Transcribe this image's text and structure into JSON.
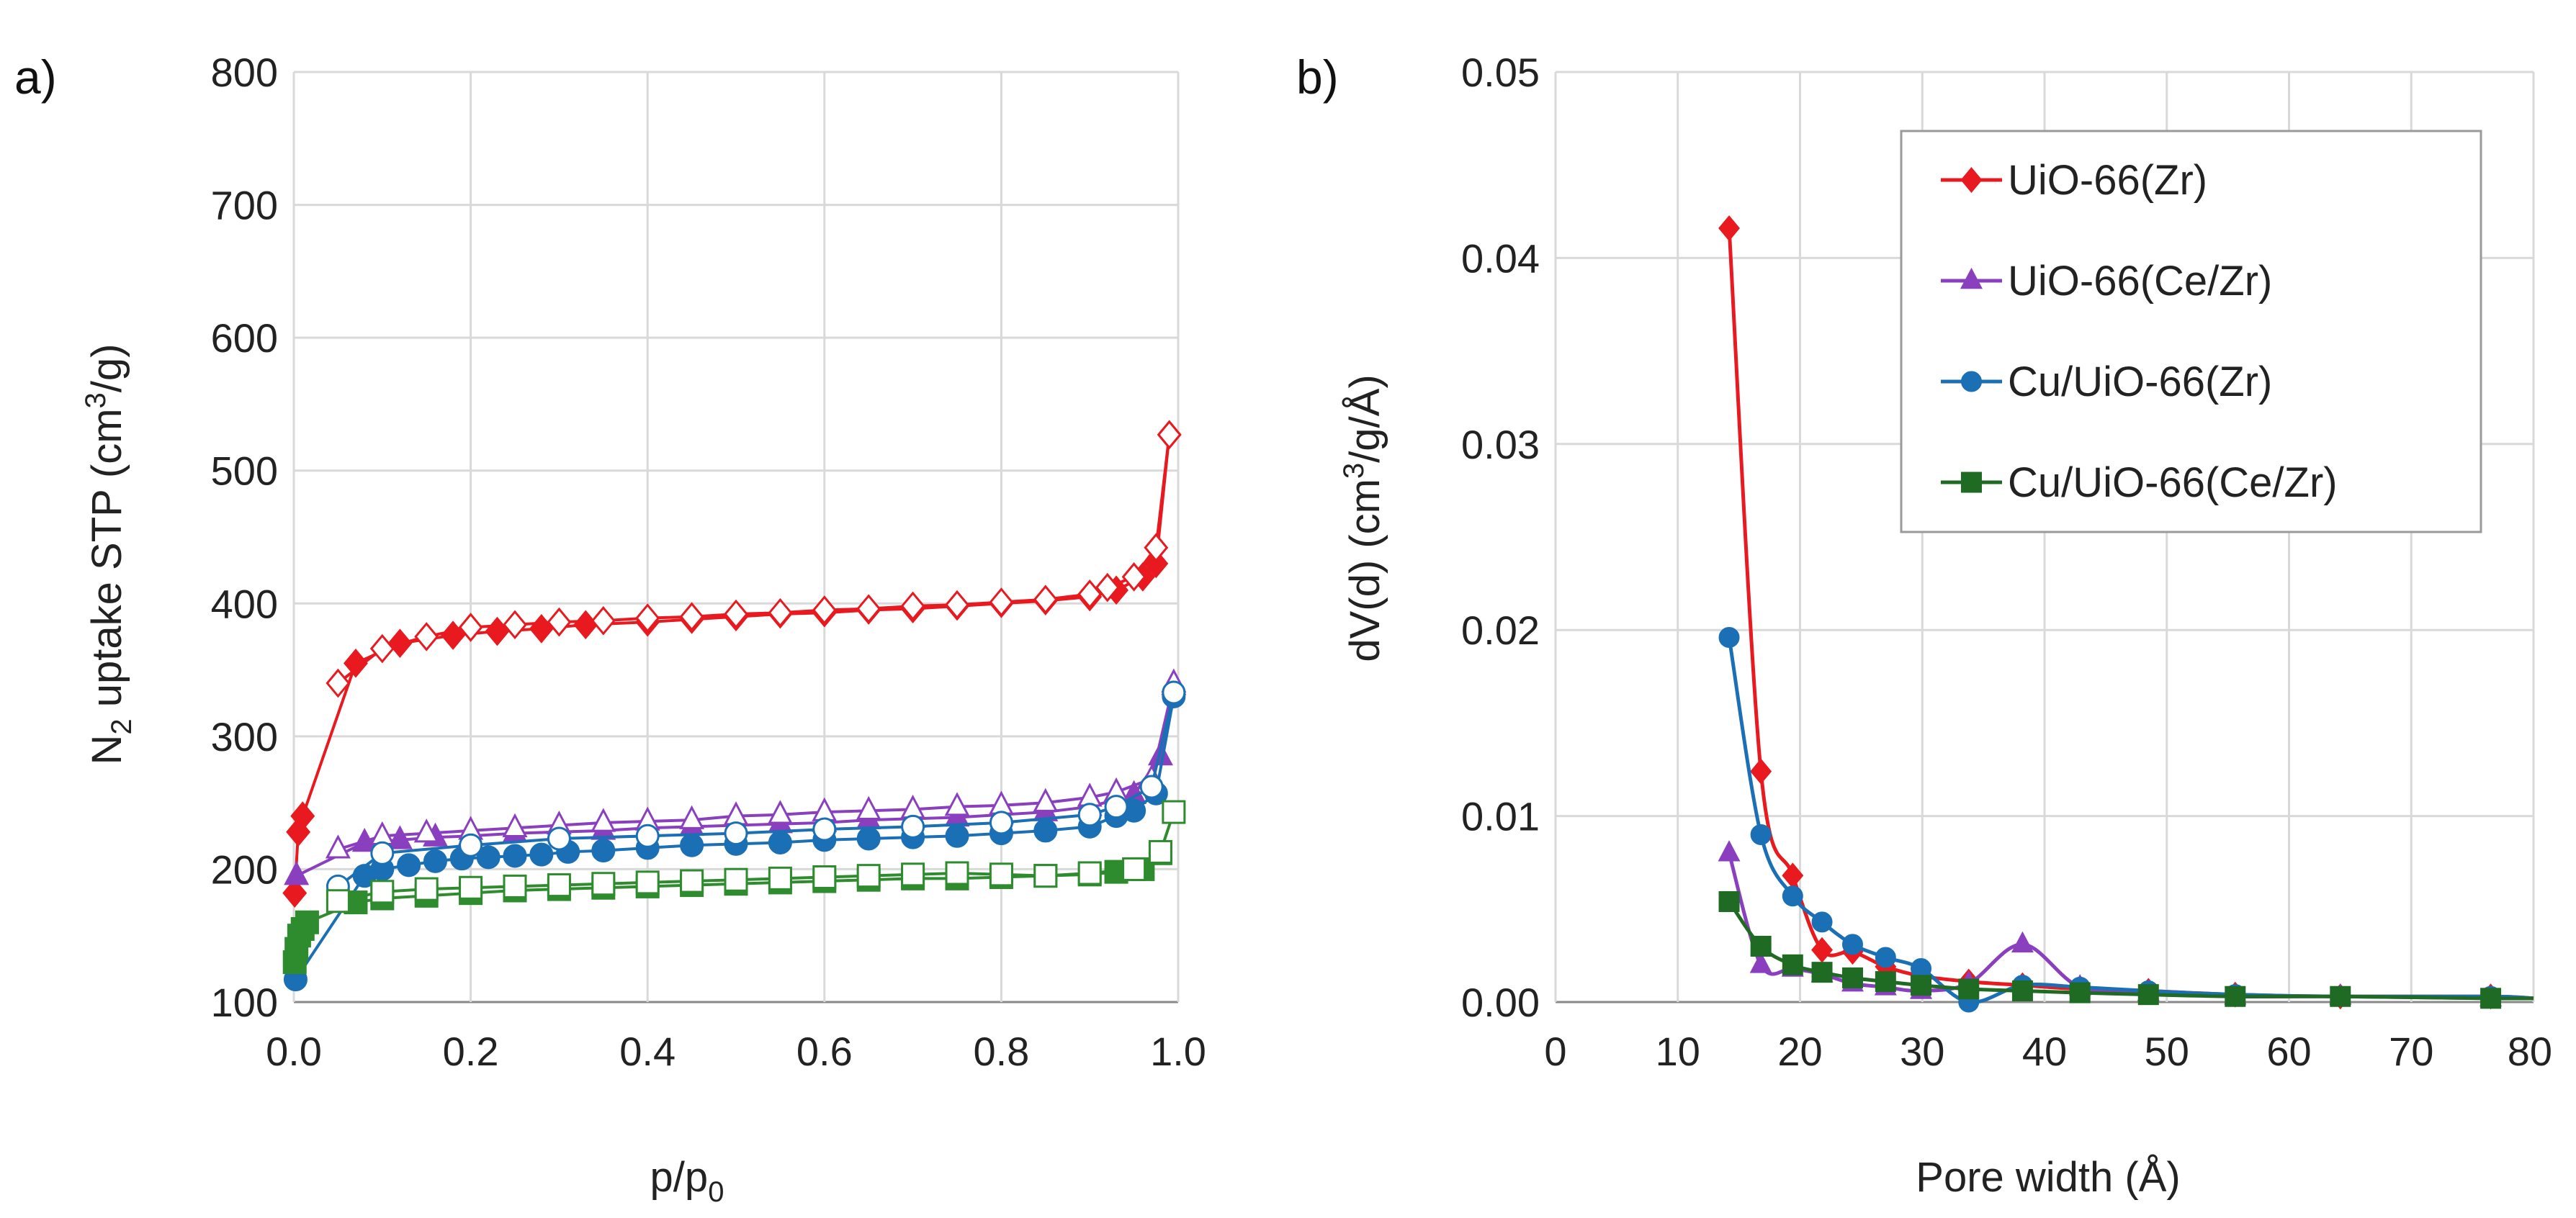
{
  "colors": {
    "UiO-66(Zr)": "#e8191f",
    "UiO-66(Ce/Zr)": "#8a3fbf",
    "Cu/UiO-66(Zr)": "#1b6fb5",
    "Cu/UiO-66(Ce/Zr)": "#2e8b2e",
    "Cu/UiO-66(Ce/Zr) dark": "#1f6b24"
  },
  "chart_data": [
    {
      "type": "scatter",
      "panel": "a)",
      "title": "",
      "xlabel": "p/p",
      "xlabel_sub": "0",
      "ylabel_pre": "N",
      "ylabel_sub": "2",
      "ylabel_mid": " uptake STP (cm",
      "ylabel_sup": "3",
      "ylabel_post": "/g)",
      "xlim": [
        0.0,
        1.0
      ],
      "ylim": [
        100,
        800
      ],
      "xticks": [
        "0.0",
        "0.2",
        "0.4",
        "0.6",
        "0.8",
        "1.0"
      ],
      "yticks": [
        "100",
        "200",
        "300",
        "400",
        "500",
        "600",
        "700",
        "800"
      ],
      "series": [
        {
          "name": "UiO-66(Zr) adsorption",
          "sample": "UiO-66(Zr)",
          "filled": true,
          "marker": "diamond",
          "x": [
            0.001,
            0.005,
            0.01,
            0.07,
            0.12,
            0.18,
            0.23,
            0.28,
            0.33,
            0.4,
            0.45,
            0.5,
            0.55,
            0.6,
            0.65,
            0.7,
            0.75,
            0.8,
            0.85,
            0.9,
            0.93,
            0.96,
            0.975,
            0.99
          ],
          "y": [
            182,
            228,
            240,
            355,
            370,
            376,
            379,
            381,
            384,
            386,
            388,
            390,
            392,
            393,
            395,
            396,
            398,
            400,
            402,
            405,
            410,
            420,
            430,
            527
          ]
        },
        {
          "name": "UiO-66(Zr) desorption",
          "sample": "UiO-66(Zr)",
          "filled": false,
          "marker": "diamond",
          "x": [
            0.99,
            0.975,
            0.95,
            0.92,
            0.9,
            0.85,
            0.8,
            0.75,
            0.7,
            0.65,
            0.6,
            0.55,
            0.5,
            0.45,
            0.4,
            0.35,
            0.3,
            0.25,
            0.2,
            0.15,
            0.1,
            0.05
          ],
          "y": [
            527,
            442,
            420,
            412,
            407,
            403,
            401,
            399,
            398,
            396,
            395,
            393,
            392,
            390,
            389,
            387,
            386,
            384,
            382,
            375,
            366,
            340
          ]
        },
        {
          "name": "UiO-66(Ce/Zr) adsorption",
          "sample": "UiO-66(Ce/Zr)",
          "filled": true,
          "marker": "triangle",
          "x": [
            0.003,
            0.08,
            0.12,
            0.16,
            0.2,
            0.25,
            0.3,
            0.35,
            0.4,
            0.45,
            0.5,
            0.55,
            0.6,
            0.65,
            0.7,
            0.75,
            0.8,
            0.85,
            0.9,
            0.95,
            0.98,
            0.995
          ],
          "y": [
            195,
            220,
            222,
            224,
            225,
            227,
            228,
            229,
            231,
            232,
            233,
            234,
            235,
            237,
            238,
            239,
            241,
            243,
            247,
            256,
            285,
            338
          ]
        },
        {
          "name": "UiO-66(Ce/Zr) desorption",
          "sample": "UiO-66(Ce/Zr)",
          "filled": false,
          "marker": "triangle",
          "x": [
            0.995,
            0.97,
            0.93,
            0.9,
            0.85,
            0.8,
            0.75,
            0.7,
            0.65,
            0.6,
            0.55,
            0.5,
            0.45,
            0.4,
            0.35,
            0.3,
            0.25,
            0.2,
            0.15,
            0.1,
            0.05
          ],
          "y": [
            340,
            268,
            258,
            254,
            250,
            248,
            247,
            245,
            244,
            243,
            241,
            240,
            237,
            236,
            235,
            233,
            231,
            229,
            227,
            225,
            215
          ]
        },
        {
          "name": "Cu/UiO-66(Zr) adsorption",
          "sample": "Cu/UiO-66(Zr)",
          "filled": true,
          "marker": "circle",
          "x": [
            0.002,
            0.08,
            0.1,
            0.13,
            0.16,
            0.19,
            0.22,
            0.25,
            0.28,
            0.31,
            0.35,
            0.4,
            0.45,
            0.5,
            0.55,
            0.6,
            0.65,
            0.7,
            0.75,
            0.8,
            0.85,
            0.9,
            0.93,
            0.95,
            0.975,
            0.995
          ],
          "y": [
            117,
            195,
            200,
            203,
            206,
            208,
            209,
            210,
            211,
            213,
            214,
            216,
            218,
            219,
            220,
            222,
            223,
            224,
            225,
            227,
            229,
            232,
            240,
            244,
            257,
            330
          ]
        },
        {
          "name": "Cu/UiO-66(Zr) desorption",
          "sample": "Cu/UiO-66(Zr)",
          "filled": false,
          "marker": "circle",
          "x": [
            0.995,
            0.97,
            0.93,
            0.9,
            0.8,
            0.7,
            0.6,
            0.5,
            0.4,
            0.3,
            0.2,
            0.1,
            0.05
          ],
          "y": [
            333,
            262,
            247,
            241,
            235,
            232,
            230,
            227,
            225,
            223,
            218,
            212,
            187
          ]
        },
        {
          "name": "Cu/UiO-66(Ce/Zr) adsorption",
          "sample": "Cu/UiO-66(Ce/Zr)",
          "filled": true,
          "marker": "square",
          "x": [
            0.001,
            0.003,
            0.006,
            0.01,
            0.015,
            0.07,
            0.1,
            0.15,
            0.2,
            0.25,
            0.3,
            0.35,
            0.4,
            0.45,
            0.5,
            0.55,
            0.6,
            0.65,
            0.7,
            0.75,
            0.8,
            0.85,
            0.9,
            0.93,
            0.96,
            0.98
          ],
          "y": [
            130,
            140,
            150,
            155,
            160,
            175,
            178,
            180,
            182,
            184,
            185,
            186,
            187,
            188,
            189,
            190,
            191,
            192,
            193,
            193,
            194,
            195,
            196,
            198,
            200,
            212
          ]
        },
        {
          "name": "Cu/UiO-66(Ce/Zr) desorption",
          "sample": "Cu/UiO-66(Ce/Zr)",
          "filled": false,
          "marker": "square",
          "x": [
            0.995,
            0.98,
            0.95,
            0.9,
            0.85,
            0.8,
            0.75,
            0.7,
            0.65,
            0.6,
            0.55,
            0.5,
            0.45,
            0.4,
            0.35,
            0.3,
            0.25,
            0.2,
            0.15,
            0.1,
            0.05
          ],
          "y": [
            243,
            213,
            200,
            197,
            195,
            196,
            197,
            196,
            195,
            194,
            193,
            192,
            191,
            190,
            189,
            188,
            187,
            186,
            185,
            183,
            176
          ]
        }
      ]
    },
    {
      "type": "line",
      "panel": "b)",
      "title": "",
      "xlabel": "Pore width (Å)",
      "ylabel_pre": "dV(d) (cm",
      "ylabel_sup": "3",
      "ylabel_post": "/g/Å)",
      "xlim": [
        0,
        80
      ],
      "ylim": [
        0,
        0.05
      ],
      "xticks": [
        "0",
        "10",
        "20",
        "30",
        "40",
        "50",
        "60",
        "70",
        "80"
      ],
      "yticks": [
        "0.00",
        "0.01",
        "0.02",
        "0.03",
        "0.04",
        "0.05"
      ],
      "legend_position": "top-right",
      "series": [
        {
          "name": "UiO-66(Zr)",
          "marker": "diamond",
          "x": [
            14.2,
            16.8,
            19.4,
            21.8,
            24.3,
            27.0,
            29.9,
            33.8,
            38.2,
            42.9,
            48.5,
            55.6,
            64.2,
            76.5,
            80
          ],
          "y": [
            0.0416,
            0.0124,
            0.0068,
            0.0028,
            0.0027,
            0.0019,
            0.0014,
            0.0011,
            0.0009,
            0.0007,
            0.0006,
            0.0004,
            0.0003,
            0.0003,
            0.0002
          ]
        },
        {
          "name": "UiO-66(Ce/Zr)",
          "marker": "triangle",
          "x": [
            14.2,
            16.8,
            19.4,
            21.8,
            24.3,
            27.0,
            29.9,
            33.8,
            38.2,
            42.9,
            48.5,
            55.6,
            64.2,
            76.5,
            80
          ],
          "y": [
            0.008,
            0.002,
            0.0018,
            0.0015,
            0.001,
            0.0008,
            0.0006,
            0.001,
            0.0031,
            0.0008,
            0.0005,
            0.0003,
            0.0003,
            0.0002,
            0.0002
          ]
        },
        {
          "name": "Cu/UiO-66(Zr)",
          "marker": "circle",
          "x": [
            14.2,
            16.8,
            19.4,
            21.8,
            24.3,
            27.0,
            29.9,
            33.8,
            38.2,
            42.9,
            48.5,
            55.6,
            64.2,
            76.5,
            80
          ],
          "y": [
            0.0196,
            0.009,
            0.0057,
            0.0043,
            0.0031,
            0.0024,
            0.0018,
            0.0,
            0.0009,
            0.0008,
            0.0006,
            0.0004,
            0.0003,
            0.0003,
            0.0002
          ]
        },
        {
          "name": "Cu/UiO-66(Ce/Zr)",
          "marker": "square",
          "x": [
            14.2,
            16.8,
            19.4,
            21.8,
            24.3,
            27.0,
            29.9,
            33.8,
            38.2,
            42.9,
            48.5,
            55.6,
            64.2,
            76.5,
            80
          ],
          "y": [
            0.0054,
            0.003,
            0.002,
            0.0016,
            0.0013,
            0.0011,
            0.0009,
            0.0007,
            0.0006,
            0.0005,
            0.0004,
            0.0003,
            0.0003,
            0.0002,
            0.0002
          ]
        }
      ]
    }
  ]
}
